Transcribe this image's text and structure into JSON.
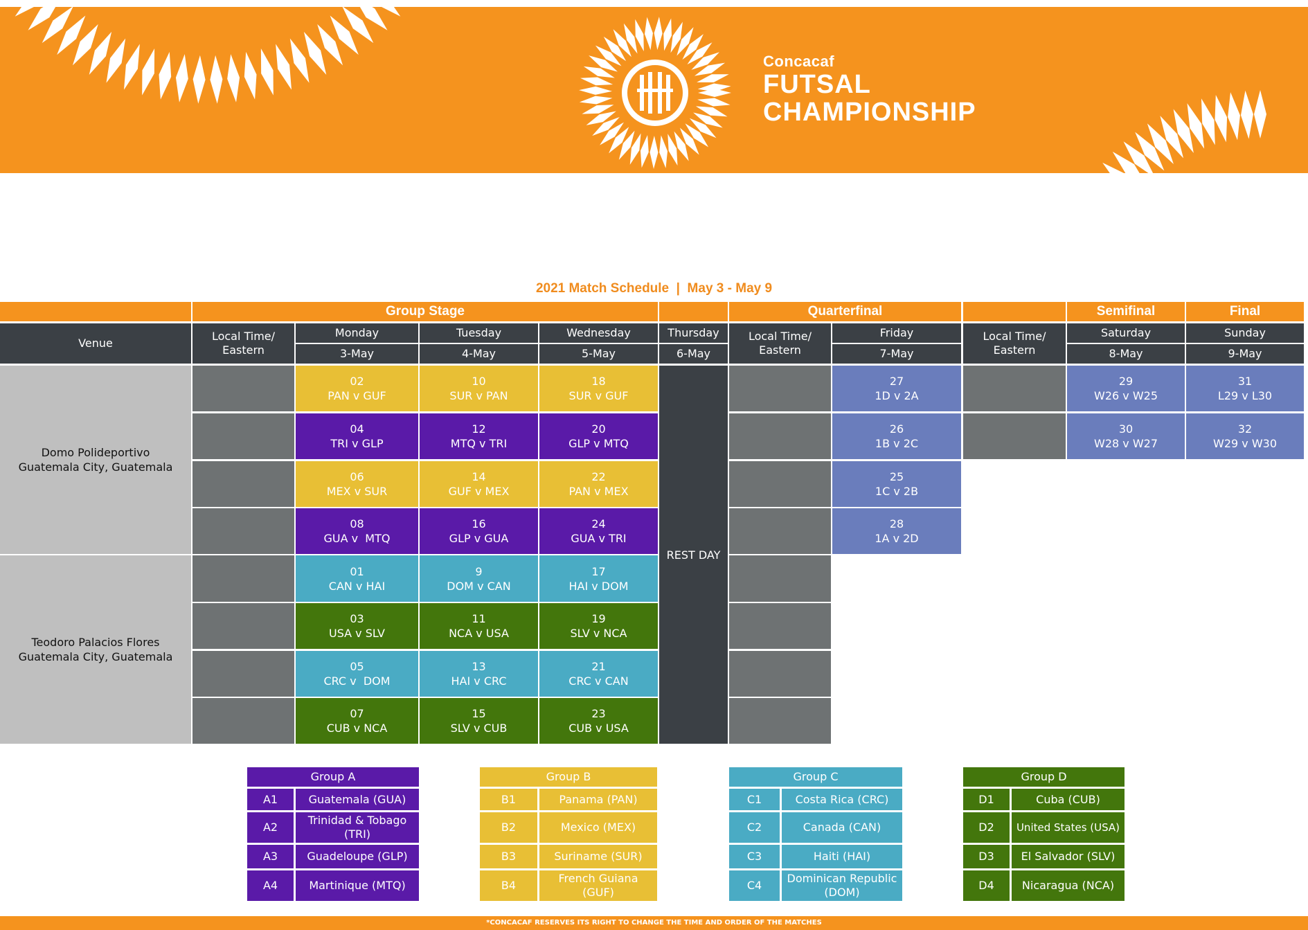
{
  "brand": {
    "line1": "Concacaf",
    "line2": "FUTSAL",
    "line3": "CHAMPIONSHIP",
    "color": "#f5931e"
  },
  "schedule_title": "2021 Match Schedule  |  May 3 - May 9",
  "stages": {
    "group": "Group Stage",
    "quarter": "Quarterfinal",
    "semi": "Semifinal",
    "final": "Final"
  },
  "headers": {
    "venue": "Venue",
    "local_time_1": "Local Time/ Eastern",
    "local_time_2": "Local Time/ Eastern",
    "local_time_3": "Local Time/ Eastern",
    "days": [
      {
        "day": "Monday",
        "date": "3-May"
      },
      {
        "day": "Tuesday",
        "date": "4-May"
      },
      {
        "day": "Wednesday",
        "date": "5-May"
      },
      {
        "day": "Thursday",
        "date": "6-May"
      },
      {
        "day": "Friday",
        "date": "7-May"
      },
      {
        "day": "Saturday",
        "date": "8-May"
      },
      {
        "day": "Sunday",
        "date": "9-May"
      }
    ]
  },
  "venues": [
    {
      "name": "Domo Polideportivo",
      "city": "Guatemala City, Guatemala"
    },
    {
      "name": "Teodoro Palacios Flores",
      "city": "Guatemala City, Guatemala"
    }
  ],
  "rest_day": "REST DAY",
  "group_matches": [
    [
      {
        "no": "02",
        "teams": "PAN v GUF"
      },
      {
        "no": "10",
        "teams": "SUR v PAN"
      },
      {
        "no": "18",
        "teams": "SUR v GUF"
      }
    ],
    [
      {
        "no": "04",
        "teams": "TRI v GLP"
      },
      {
        "no": "12",
        "teams": "MTQ v TRI"
      },
      {
        "no": "20",
        "teams": "GLP v MTQ"
      }
    ],
    [
      {
        "no": "06",
        "teams": "MEX v SUR"
      },
      {
        "no": "14",
        "teams": "GUF v MEX"
      },
      {
        "no": "22",
        "teams": "PAN v MEX"
      }
    ],
    [
      {
        "no": "08",
        "teams": "GUA v  MTQ"
      },
      {
        "no": "16",
        "teams": "GLP v GUA"
      },
      {
        "no": "24",
        "teams": "GUA v TRI"
      }
    ],
    [
      {
        "no": "01",
        "teams": "CAN v HAI"
      },
      {
        "no": "9",
        "teams": "DOM v CAN"
      },
      {
        "no": "17",
        "teams": "HAI v DOM"
      }
    ],
    [
      {
        "no": "03",
        "teams": "USA v SLV"
      },
      {
        "no": "11",
        "teams": "NCA v USA"
      },
      {
        "no": "19",
        "teams": "SLV v NCA"
      }
    ],
    [
      {
        "no": "05",
        "teams": "CRC v  DOM"
      },
      {
        "no": "13",
        "teams": "HAI v CRC"
      },
      {
        "no": "21",
        "teams": "CRC v CAN"
      }
    ],
    [
      {
        "no": "07",
        "teams": "CUB v NCA"
      },
      {
        "no": "15",
        "teams": "SLV v CUB"
      },
      {
        "no": "23",
        "teams": "CUB v USA"
      }
    ]
  ],
  "quarter_matches": [
    {
      "no": "27",
      "teams": "1D v 2A"
    },
    {
      "no": "26",
      "teams": "1B v 2C"
    },
    {
      "no": "25",
      "teams": "1C v 2B"
    },
    {
      "no": "28",
      "teams": "1A v 2D"
    }
  ],
  "semi_matches": [
    {
      "no": "29",
      "teams": "W26 v W25"
    },
    {
      "no": "30",
      "teams": "W28 v W27"
    }
  ],
  "final_matches": [
    {
      "no": "31",
      "teams": "L29 v L30"
    },
    {
      "no": "32",
      "teams": "W29 v W30"
    }
  ],
  "groups": [
    {
      "title": "Group A",
      "color": "#5a1aa8",
      "text": "#ffffff",
      "teams": [
        {
          "code": "A1",
          "name": "Guatemala (GUA)"
        },
        {
          "code": "A2",
          "name": "Trinidad & Tobago (TRI)"
        },
        {
          "code": "A3",
          "name": "Guadeloupe (GLP)"
        },
        {
          "code": "A4",
          "name": "Martinique (MTQ)"
        }
      ]
    },
    {
      "title": "Group B",
      "color": "#e8bf35",
      "text": "#ffffff",
      "teams": [
        {
          "code": "B1",
          "name": "Panama (PAN)"
        },
        {
          "code": "B2",
          "name": "Mexico (MEX)"
        },
        {
          "code": "B3",
          "name": "Suriname (SUR)"
        },
        {
          "code": "B4",
          "name": "French Guiana (GUF)"
        }
      ]
    },
    {
      "title": "Group C",
      "color": "#4aabc4",
      "text": "#ffffff",
      "teams": [
        {
          "code": "C1",
          "name": "Costa Rica (CRC)"
        },
        {
          "code": "C2",
          "name": "Canada (CAN)"
        },
        {
          "code": "C3",
          "name": "Haiti (HAI)"
        },
        {
          "code": "C4",
          "name": "Dominican Republic (DOM)"
        }
      ]
    },
    {
      "title": "Group D",
      "color": "#43760c",
      "text": "#ffffff",
      "teams": [
        {
          "code": "D1",
          "name": "Cuba (CUB)"
        },
        {
          "code": "D2",
          "name": "United States (USA)"
        },
        {
          "code": "D3",
          "name": "El Salvador (SLV)"
        },
        {
          "code": "D4",
          "name": "Nicaragua (NCA)"
        }
      ]
    }
  ],
  "footer_note": "*CONCACAF RESERVES ITS RIGHT TO CHANGE THE TIME AND ORDER OF THE MATCHES"
}
